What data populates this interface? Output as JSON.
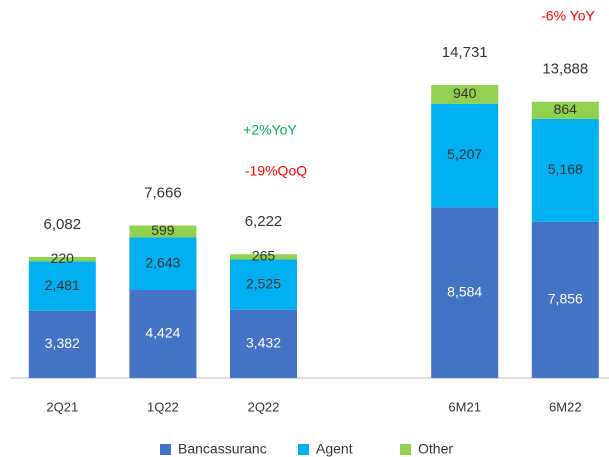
{
  "chart_data": {
    "type": "stacked_bar",
    "categories": [
      "2Q21",
      "1Q22",
      "2Q22",
      null,
      "6M21",
      "6M22"
    ],
    "series": [
      {
        "name": "Bancassuranc",
        "color": "#4472c4",
        "values": [
          3382,
          4424,
          3432,
          null,
          8584,
          7856
        ],
        "value_labels": [
          "3,382",
          "4,424",
          "3,432",
          null,
          "8,584",
          "7,856"
        ]
      },
      {
        "name": "Agent",
        "color": "#00b0f0",
        "values": [
          2481,
          2643,
          2525,
          null,
          5207,
          5168
        ],
        "value_labels": [
          "2,481",
          "2,643",
          "2,525",
          null,
          "5,207",
          "5,168"
        ]
      },
      {
        "name": "Other",
        "color": "#92d050",
        "values": [
          220,
          599,
          265,
          null,
          940,
          864
        ],
        "value_labels": [
          "220",
          "599",
          "265",
          null,
          "940",
          "864"
        ]
      }
    ],
    "totals": [
      6082,
      7666,
      6222,
      null,
      14731,
      13888
    ],
    "total_labels": [
      "6,082",
      "7,666",
      "6,222",
      null,
      "14,731",
      "13,888"
    ],
    "annotations": [
      {
        "text": "+2%YoY",
        "color": "#00b050"
      },
      {
        "text": "-19%QoQ",
        "color": "#ff0000"
      },
      {
        "text": "-6% YoY",
        "color": "#ff0000"
      }
    ],
    "legend": "bottom"
  }
}
